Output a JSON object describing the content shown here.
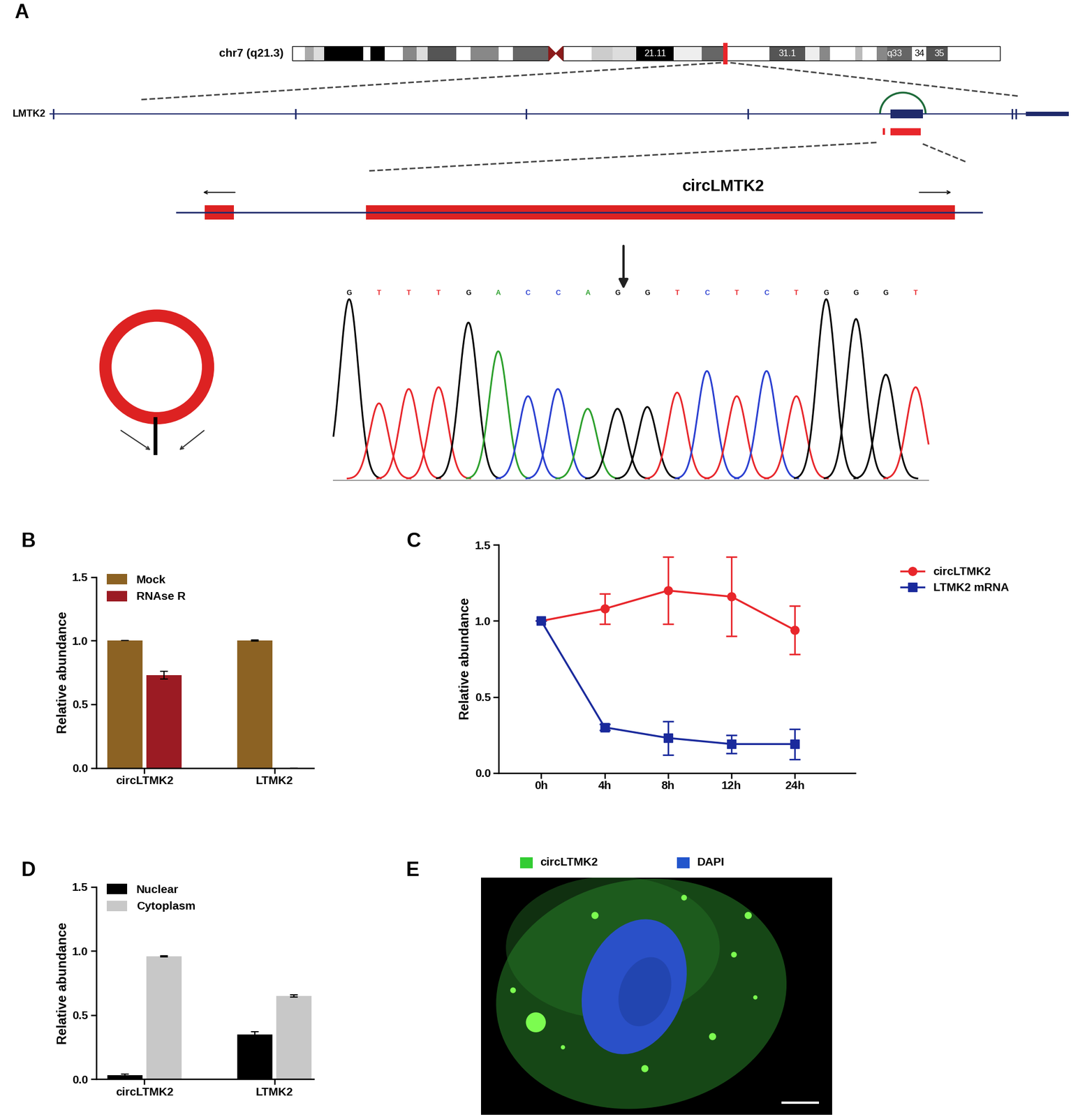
{
  "panel_a": {
    "label": "A",
    "chromosome": "chr7 (q21.3)",
    "bands": [
      "21.11",
      "31.1",
      "q33",
      "34",
      "35"
    ],
    "gene": "LMTK2",
    "circ_name": "circLMTK2",
    "sequence": [
      "G",
      "T",
      "T",
      "T",
      "G",
      "A",
      "C",
      "C",
      "A",
      "G",
      "G",
      "T",
      "C",
      "T",
      "C",
      "T",
      "G",
      "G",
      "G",
      "T"
    ],
    "peak_heights": [
      1.0,
      0.42,
      0.5,
      0.51,
      0.87,
      0.71,
      0.46,
      0.5,
      0.39,
      0.39,
      0.4,
      0.48,
      0.6,
      0.46,
      0.6,
      0.46,
      1.0,
      0.89,
      0.58,
      0.51
    ],
    "base_colors": {
      "G": "#000000",
      "T": "#e8262b",
      "A": "#2ca02c",
      "C": "#2a3fd1"
    }
  },
  "chart_data": [
    {
      "panel_label": "B",
      "type": "bar",
      "categories": [
        "circLTMK2",
        "LTMK2"
      ],
      "series": [
        {
          "name": "Mock",
          "color": "#8c6223",
          "values": [
            1.0,
            1.0
          ],
          "errors": [
            0,
            0.005
          ]
        },
        {
          "name": "RNAse R",
          "color": "#9b1b23",
          "values": [
            0.73,
            0
          ],
          "errors": [
            0.03,
            0
          ]
        }
      ],
      "y_label": "Relative abundance",
      "ylim": [
        0,
        1.5
      ],
      "yticks": [
        {
          "value": 0,
          "label": "0.0"
        },
        {
          "value": 0.5,
          "label": "0.5"
        },
        {
          "value": 1.0,
          "label": "1.0"
        },
        {
          "value": 1.5,
          "label": "1.5"
        }
      ],
      "legend": "upper left"
    },
    {
      "panel_label": "C",
      "type": "line",
      "categories": [
        "0h",
        "4h",
        "8h",
        "12h",
        "24h"
      ],
      "series": [
        {
          "name": "circLTMK2",
          "color": "#e8262b",
          "marker": "o",
          "values": [
            1.0,
            1.08,
            1.2,
            1.16,
            0.94
          ],
          "errors": [
            0,
            0.1,
            0.22,
            0.26,
            0.16
          ]
        },
        {
          "name": "LTMK2 mRNA",
          "color": "#1a2a9c",
          "marker": "s",
          "values": [
            1.0,
            0.3,
            0.23,
            0.19,
            0.19
          ],
          "errors": [
            0,
            0.02,
            0.11,
            0.06,
            0.1
          ]
        }
      ],
      "y_label": "Relative abundance",
      "ylim": [
        0,
        1.5
      ],
      "yticks": [
        {
          "value": 0,
          "label": "0.0"
        },
        {
          "value": 0.5,
          "label": "0.5"
        },
        {
          "value": 1.0,
          "label": "1.0"
        },
        {
          "value": 1.5,
          "label": "1.5"
        }
      ],
      "legend": "upper left"
    },
    {
      "panel_label": "D",
      "type": "bar",
      "categories": [
        "circLTMK2",
        "LTMK2"
      ],
      "series": [
        {
          "name": "Nuclear",
          "color": "#000000",
          "values": [
            0.03,
            0.35
          ],
          "errors": [
            0.01,
            0.02
          ]
        },
        {
          "name": "Cytoplasm",
          "color": "#c8c8c8",
          "values": [
            0.96,
            0.65
          ],
          "errors": [
            0.005,
            0.01
          ]
        }
      ],
      "y_label": "Relative abundance",
      "ylim": [
        0,
        1.5
      ],
      "yticks": [
        {
          "value": 0,
          "label": "0.0"
        },
        {
          "value": 0.5,
          "label": "0.5"
        },
        {
          "value": 1.0,
          "label": "1.0"
        },
        {
          "value": 1.5,
          "label": "1.5"
        }
      ],
      "legend": "upper left"
    }
  ],
  "panel_e": {
    "label": "E",
    "channels": [
      {
        "name": "circLTMK2",
        "color": "#33cc33"
      },
      {
        "name": "DAPI",
        "color": "#2255cc"
      }
    ]
  }
}
